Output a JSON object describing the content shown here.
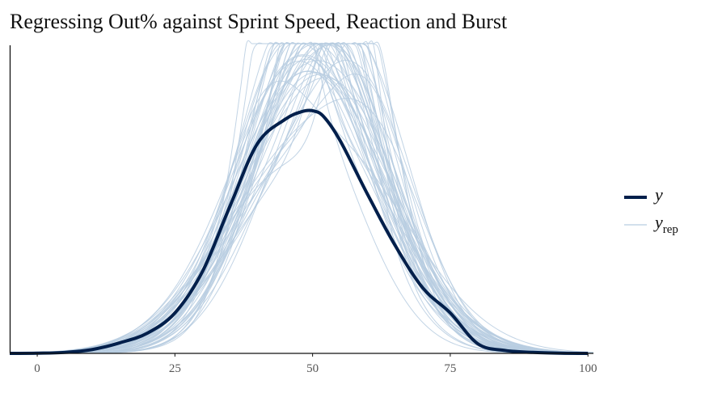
{
  "chart_data": {
    "type": "line",
    "title": "Regressing Out% against Sprint Speed, Reaction and Burst",
    "xlabel": "",
    "ylabel": "",
    "xlim": [
      -5,
      101
    ],
    "ylim": [
      0,
      0.032
    ],
    "x_ticks": [
      0,
      25,
      50,
      75,
      100
    ],
    "y_ticks_shown": false,
    "grid": false,
    "legend_position": "right",
    "colors": {
      "y": "#011f4b",
      "yrep": "#b7cde0"
    },
    "legend": [
      {
        "key": "y",
        "label": "y",
        "sub": ""
      },
      {
        "key": "yrep",
        "label": "y",
        "sub": "rep"
      }
    ],
    "y_series": {
      "name": "y",
      "x": [
        -5,
        0,
        5,
        10,
        15,
        20,
        25,
        30,
        35,
        40,
        45,
        48,
        50,
        52,
        55,
        60,
        65,
        70,
        75,
        80,
        85,
        90,
        95,
        100
      ],
      "y": [
        0,
        2e-05,
        0.0001,
        0.0004,
        0.0011,
        0.0021,
        0.0042,
        0.0085,
        0.0153,
        0.0218,
        0.0243,
        0.0251,
        0.0252,
        0.0246,
        0.0221,
        0.0165,
        0.0112,
        0.0068,
        0.0042,
        0.001,
        0.0003,
        0.0001,
        2e-05,
        0
      ]
    },
    "yrep_series_count": 50
  }
}
